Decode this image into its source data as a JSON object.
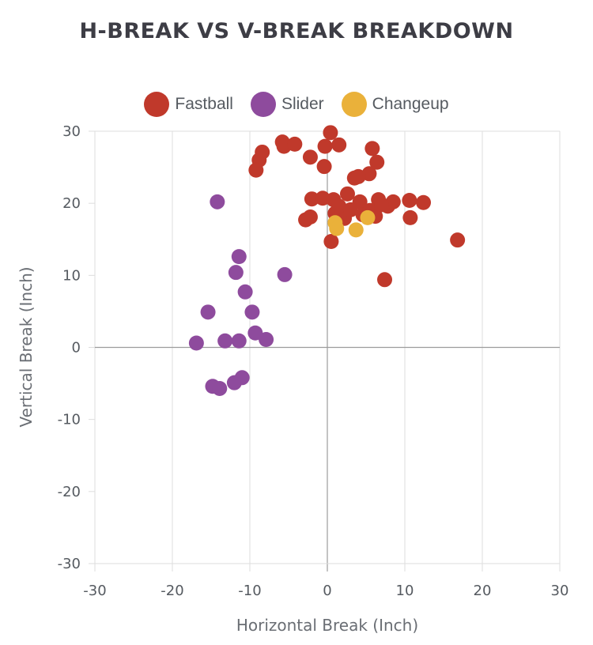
{
  "chart_data": {
    "type": "scatter",
    "title": "H-BREAK VS V-BREAK BREAKDOWN",
    "xlabel": "Horizontal Break (Inch)",
    "ylabel": "Vertical Break (Inch)",
    "xlim": [
      -30,
      30
    ],
    "ylim": [
      -30,
      30
    ],
    "xticks": [
      -30,
      -20,
      -10,
      0,
      10,
      20,
      30
    ],
    "yticks": [
      30,
      20,
      10,
      0,
      -10,
      -20,
      -30
    ],
    "grid": "vertical",
    "legend_position": "top-center",
    "series": [
      {
        "name": "Fastball",
        "color": "#c0392b",
        "points": [
          [
            -5.8,
            28.5
          ],
          [
            -5.6,
            27.9
          ],
          [
            -4.2,
            28.2
          ],
          [
            0.4,
            29.8
          ],
          [
            1.5,
            28.1
          ],
          [
            -0.3,
            27.9
          ],
          [
            -8.4,
            27.1
          ],
          [
            -8.8,
            26.0
          ],
          [
            -9.2,
            24.6
          ],
          [
            -2.2,
            26.4
          ],
          [
            -0.4,
            25.1
          ],
          [
            5.8,
            27.6
          ],
          [
            6.4,
            25.7
          ],
          [
            5.4,
            24.1
          ],
          [
            3.5,
            23.5
          ],
          [
            4.0,
            23.7
          ],
          [
            -2.0,
            20.6
          ],
          [
            -0.6,
            20.7
          ],
          [
            0.8,
            20.5
          ],
          [
            2.6,
            21.3
          ],
          [
            4.2,
            20.2
          ],
          [
            6.6,
            20.5
          ],
          [
            7.8,
            19.6
          ],
          [
            8.5,
            20.2
          ],
          [
            10.6,
            20.4
          ],
          [
            12.4,
            20.1
          ],
          [
            -2.2,
            18.1
          ],
          [
            -2.8,
            17.7
          ],
          [
            1.0,
            18.6
          ],
          [
            2.2,
            17.9
          ],
          [
            4.6,
            18.4
          ],
          [
            5.5,
            19.0
          ],
          [
            6.2,
            18.2
          ],
          [
            7.0,
            19.8
          ],
          [
            10.7,
            18.0
          ],
          [
            1.5,
            19.6
          ],
          [
            3.0,
            19.1
          ],
          [
            0.5,
            14.7
          ],
          [
            7.4,
            9.4
          ],
          [
            16.8,
            14.9
          ]
        ]
      },
      {
        "name": "Slider",
        "color": "#8e4b9d",
        "points": [
          [
            -14.2,
            20.2
          ],
          [
            -11.4,
            12.6
          ],
          [
            -11.8,
            10.4
          ],
          [
            -5.5,
            10.1
          ],
          [
            -10.6,
            7.7
          ],
          [
            -15.4,
            4.9
          ],
          [
            -9.7,
            4.9
          ],
          [
            -9.3,
            2.0
          ],
          [
            -7.9,
            1.1
          ],
          [
            -11.4,
            0.9
          ],
          [
            -13.2,
            0.9
          ],
          [
            -16.9,
            0.6
          ],
          [
            -14.8,
            -5.4
          ],
          [
            -13.9,
            -5.7
          ],
          [
            -12.0,
            -4.9
          ],
          [
            -11.0,
            -4.2
          ]
        ]
      },
      {
        "name": "Changeup",
        "color": "#eab13a",
        "points": [
          [
            1.0,
            17.3
          ],
          [
            1.2,
            16.5
          ],
          [
            3.7,
            16.3
          ],
          [
            5.2,
            18.0
          ]
        ]
      }
    ]
  }
}
